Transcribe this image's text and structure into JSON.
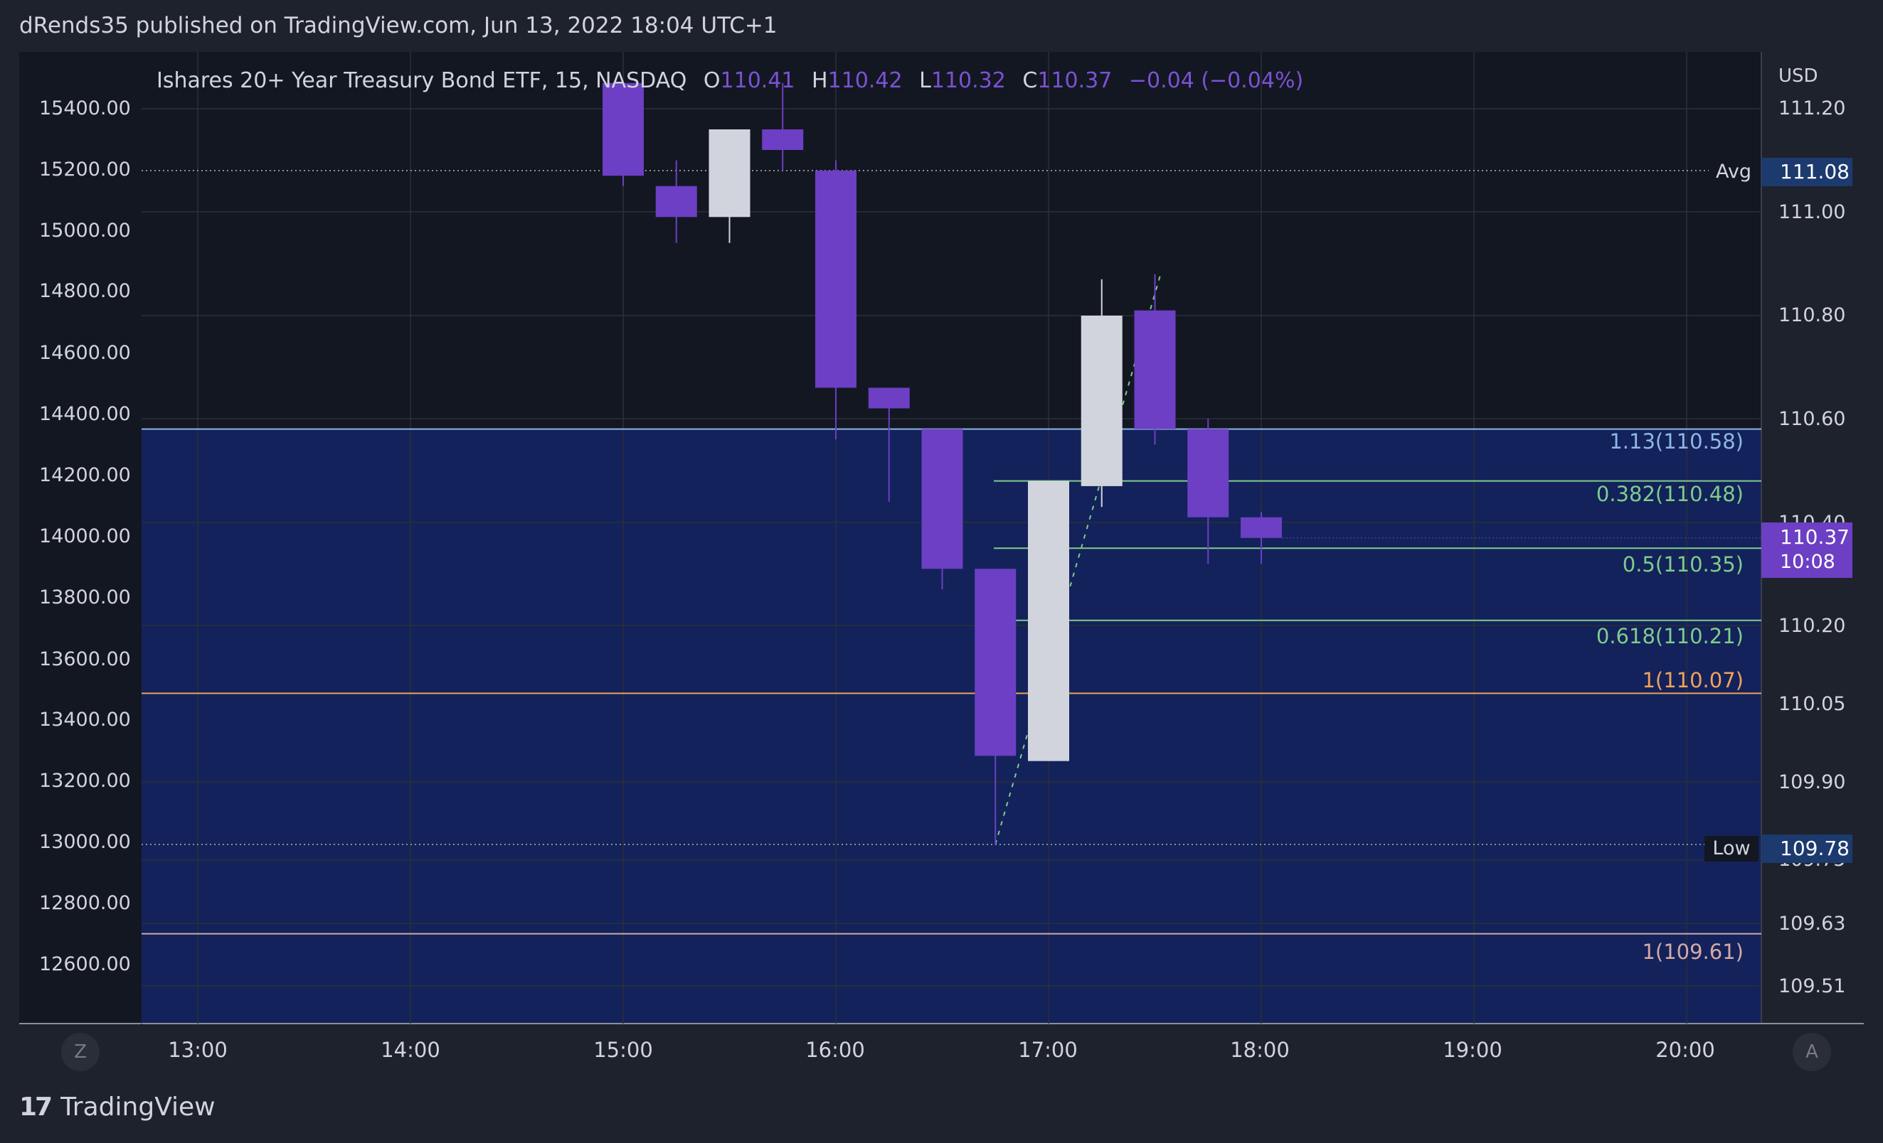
{
  "header": {
    "published": "dRends35 published on TradingView.com, Jun 13, 2022 18:04 UTC+1"
  },
  "legend": {
    "symbol": "Ishares 20+ Year Treasury Bond ETF, 15, NASDAQ",
    "o_label": "O",
    "o_value": "110.41",
    "h_label": "H",
    "h_value": "110.42",
    "l_label": "L",
    "l_value": "110.32",
    "c_label": "C",
    "c_value": "110.37",
    "change": "−0.04 (−0.04%)"
  },
  "right_axis": {
    "currency": "USD",
    "ticks": [
      "111.20",
      "111.00",
      "110.80",
      "110.60",
      "110.40",
      "110.20",
      "110.05",
      "109.90",
      "109.75",
      "109.63",
      "109.51"
    ]
  },
  "left_axis": {
    "ticks": [
      "15400.00",
      "15200.00",
      "15000.00",
      "14800.00",
      "14600.00",
      "14400.00",
      "14200.00",
      "14000.00",
      "13800.00",
      "13600.00",
      "13400.00",
      "13200.00",
      "13000.00",
      "12800.00",
      "12600.00"
    ]
  },
  "markers": {
    "avg_label": "Avg",
    "avg_value": "111.08",
    "low_label": "Low",
    "low_value": "109.78",
    "last_price": "110.37",
    "countdown": "10:08"
  },
  "fib_labels": {
    "f113": "1.13(110.58)",
    "f0382": "0.382(110.48)",
    "f05": "0.5(110.35)",
    "f0618": "0.618(110.21)",
    "f1": "1(110.07)",
    "f1b": "1(109.61)"
  },
  "scale_buttons": {
    "left": "Z",
    "right": "A"
  },
  "footer": {
    "logo_mark": "17",
    "logo_text": "TradingView"
  },
  "colors": {
    "background": "#1e222d",
    "pane": "#131722",
    "zone": "#13225a",
    "bear": "#6c3fc4",
    "bull": "#d1d4dc",
    "fib_green": "#7fcc8c",
    "fib_blue": "#8fb6e6",
    "fib_orange": "#f0a25a",
    "fib_pink": "#d4a9a6"
  },
  "chart_data": {
    "type": "candlestick",
    "title": "Ishares 20+ Year Treasury Bond ETF, 15, NASDAQ",
    "x": [
      "13:00",
      "14:00",
      "15:00",
      "16:00",
      "17:00",
      "18:00",
      "19:00",
      "20:00"
    ],
    "ylim": [
      109.46,
      111.25
    ],
    "candles": [
      {
        "t": "15:00",
        "o": 111.25,
        "h": 111.25,
        "l": 111.05,
        "c": 111.07
      },
      {
        "t": "15:15",
        "o": 111.05,
        "h": 111.1,
        "l": 110.94,
        "c": 110.99
      },
      {
        "t": "15:30",
        "o": 110.99,
        "h": 111.16,
        "l": 110.94,
        "c": 111.16
      },
      {
        "t": "15:45",
        "o": 111.16,
        "h": 111.25,
        "l": 111.08,
        "c": 111.12
      },
      {
        "t": "16:00",
        "o": 111.08,
        "h": 111.1,
        "l": 110.56,
        "c": 110.66
      },
      {
        "t": "16:15",
        "o": 110.66,
        "h": 110.66,
        "l": 110.44,
        "c": 110.62
      },
      {
        "t": "16:30",
        "o": 110.58,
        "h": 110.58,
        "l": 110.27,
        "c": 110.31
      },
      {
        "t": "16:45",
        "o": 110.31,
        "h": 110.31,
        "l": 109.78,
        "c": 109.95
      },
      {
        "t": "17:00",
        "o": 109.94,
        "h": 110.48,
        "l": 109.94,
        "c": 110.48
      },
      {
        "t": "17:15",
        "o": 110.47,
        "h": 110.87,
        "l": 110.43,
        "c": 110.8
      },
      {
        "t": "17:30",
        "o": 110.81,
        "h": 110.88,
        "l": 110.55,
        "c": 110.58
      },
      {
        "t": "17:45",
        "o": 110.58,
        "h": 110.6,
        "l": 110.32,
        "c": 110.41
      },
      {
        "t": "18:00",
        "o": 110.41,
        "h": 110.42,
        "l": 110.32,
        "c": 110.37
      }
    ],
    "avg_line": 111.08,
    "low_line": 109.78,
    "last_price": 110.37,
    "fib_levels": [
      {
        "label": "1.13(110.58)",
        "value": 110.58
      },
      {
        "label": "0.382(110.48)",
        "value": 110.48
      },
      {
        "label": "0.5(110.35)",
        "value": 110.35
      },
      {
        "label": "0.618(110.21)",
        "value": 110.21
      },
      {
        "label": "1(110.07)",
        "value": 110.07
      },
      {
        "label": "1(109.61)",
        "value": 109.61
      }
    ]
  }
}
